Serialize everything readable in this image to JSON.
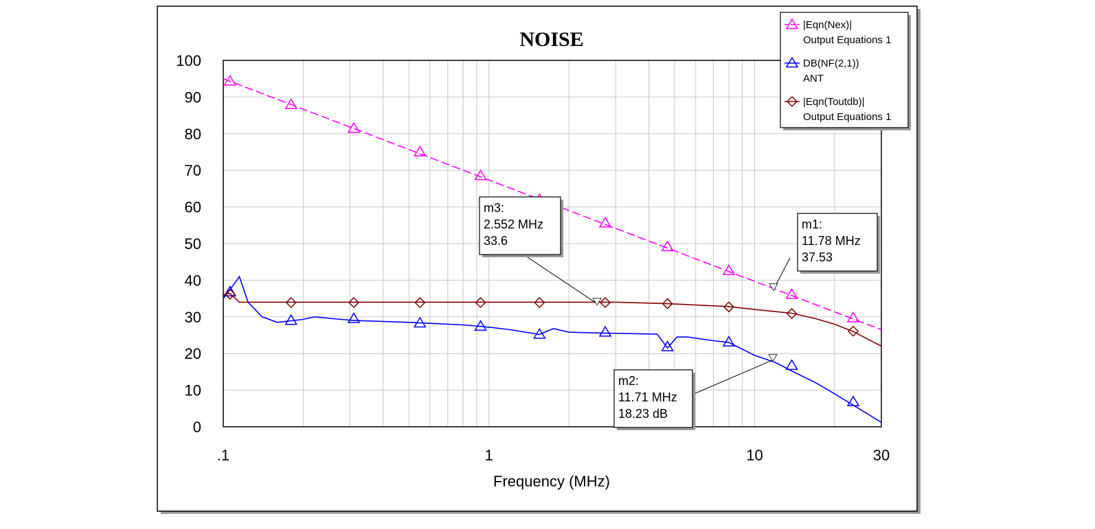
{
  "chart_data": {
    "type": "line",
    "title": "NOISE",
    "xlabel": "Frequency (MHz)",
    "ylabel": "",
    "xscale": "log",
    "xlim": [
      0.1,
      30
    ],
    "ylim": [
      0,
      100
    ],
    "xticks": [
      {
        "value": 0.1,
        "label": ".1"
      },
      {
        "value": 1,
        "label": "1"
      },
      {
        "value": 10,
        "label": "10"
      },
      {
        "value": 30,
        "label": "30"
      }
    ],
    "yticks": [
      0,
      10,
      20,
      30,
      40,
      50,
      60,
      70,
      80,
      90,
      100
    ],
    "grid": true,
    "legend_position": "top-right",
    "series": [
      {
        "name": "|Eqn(Nex)|",
        "source": "Output Equations 1",
        "color": "#ff00ff",
        "dashed": true,
        "marker": "triangle",
        "points": [
          [
            0.1,
            95
          ],
          [
            30,
            26.5
          ]
        ],
        "markers_at": [
          [
            0.106,
            94.3
          ],
          [
            0.18,
            87.9
          ],
          [
            0.31,
            81.4
          ],
          [
            0.55,
            75.0
          ],
          [
            0.93,
            68.5
          ],
          [
            1.55,
            62.0
          ],
          [
            2.74,
            55.6
          ],
          [
            4.7,
            49.1
          ],
          [
            8.0,
            42.6
          ],
          [
            13.8,
            36.1
          ],
          [
            23.5,
            29.7
          ]
        ]
      },
      {
        "name": "DB(NF(2,1))",
        "source": "ANT",
        "color": "#0000ff",
        "dashed": false,
        "marker": "triangle",
        "points": [
          [
            0.1,
            35
          ],
          [
            0.105,
            37
          ],
          [
            0.11,
            39
          ],
          [
            0.115,
            41
          ],
          [
            0.124,
            34
          ],
          [
            0.14,
            30
          ],
          [
            0.16,
            28.5
          ],
          [
            0.2,
            29.3
          ],
          [
            0.22,
            30
          ],
          [
            0.26,
            29.5
          ],
          [
            0.31,
            29
          ],
          [
            0.5,
            28.5
          ],
          [
            0.8,
            27.8
          ],
          [
            1.0,
            27.2
          ],
          [
            1.2,
            26.5
          ],
          [
            1.55,
            25.2
          ],
          [
            1.75,
            26.8
          ],
          [
            2.0,
            25.8
          ],
          [
            3.0,
            25.5
          ],
          [
            4.3,
            25.3
          ],
          [
            4.7,
            21.5
          ],
          [
            5.1,
            24.5
          ],
          [
            5.6,
            24.5
          ],
          [
            7.0,
            23.5
          ],
          [
            8.0,
            23.0
          ],
          [
            10,
            19.5
          ],
          [
            12,
            17.5
          ],
          [
            14,
            15
          ],
          [
            17,
            12
          ],
          [
            20,
            9
          ],
          [
            24,
            5.5
          ],
          [
            30,
            1.2
          ]
        ],
        "markers_at": [
          [
            0.106,
            36.8
          ],
          [
            0.18,
            29.0
          ],
          [
            0.31,
            29.5
          ],
          [
            0.55,
            28.3
          ],
          [
            0.93,
            27.4
          ],
          [
            1.55,
            25.2
          ],
          [
            2.74,
            25.8
          ],
          [
            4.7,
            21.8
          ],
          [
            8.0,
            23.1
          ],
          [
            13.8,
            16.7
          ],
          [
            23.5,
            6.8
          ]
        ]
      },
      {
        "name": "|Eqn(Toutdb)|",
        "source": "Output Equations 1",
        "color": "#800000",
        "dashed": false,
        "marker": "diamond",
        "points": [
          [
            0.1,
            36
          ],
          [
            0.106,
            36.4
          ],
          [
            0.115,
            34
          ],
          [
            0.13,
            34
          ],
          [
            1,
            34
          ],
          [
            3,
            34
          ],
          [
            4.7,
            33.6
          ],
          [
            8.0,
            32.8
          ],
          [
            10,
            32
          ],
          [
            13.8,
            31
          ],
          [
            17,
            29.5
          ],
          [
            20,
            28
          ],
          [
            23.5,
            26
          ],
          [
            30,
            22
          ]
        ],
        "markers_at": [
          [
            0.106,
            36.2
          ],
          [
            0.18,
            33.9
          ],
          [
            0.31,
            33.9
          ],
          [
            0.55,
            33.9
          ],
          [
            0.93,
            33.9
          ],
          [
            1.55,
            33.9
          ],
          [
            2.74,
            33.9
          ],
          [
            4.7,
            33.6
          ],
          [
            8.0,
            32.7
          ],
          [
            13.8,
            30.9
          ],
          [
            23.5,
            26.1
          ]
        ]
      }
    ],
    "markers": [
      {
        "id": "m1",
        "label": "m1:",
        "x_text": "11.78 MHz",
        "y_text": "37.53",
        "x": 11.78,
        "y": 37.53
      },
      {
        "id": "m2",
        "label": "m2:",
        "x_text": "11.71 MHz",
        "y_text": "18.23 dB",
        "x": 11.71,
        "y": 18.23
      },
      {
        "id": "m3",
        "label": "m3:",
        "x_text": "2.552 MHz",
        "y_text": "33.6",
        "x": 2.552,
        "y": 33.6
      }
    ]
  }
}
